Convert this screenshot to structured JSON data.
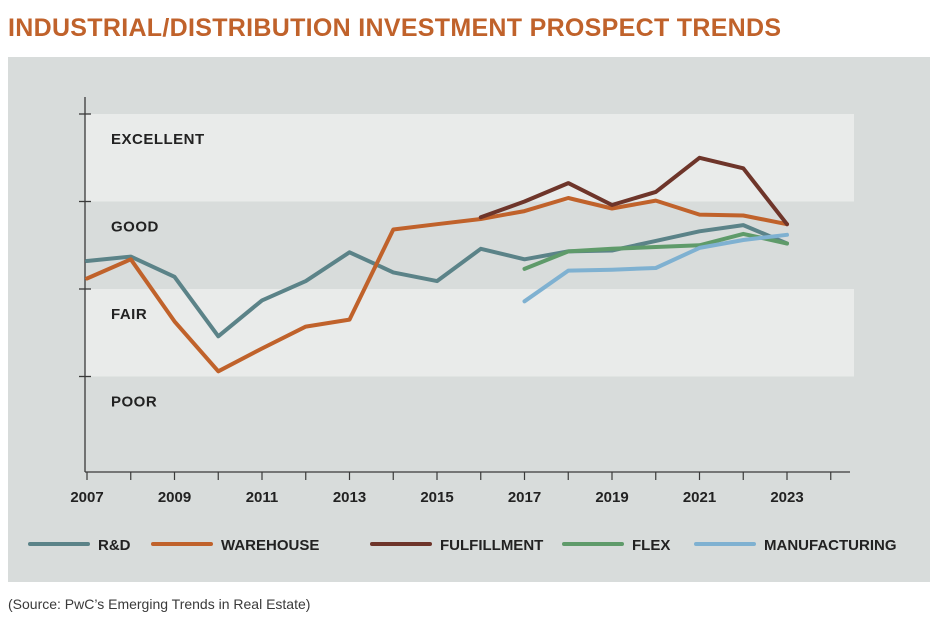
{
  "title": "INDUSTRIAL/DISTRIBUTION INVESTMENT PROSPECT TRENDS",
  "source": "(Source: PwC’s Emerging Trends in Real Estate)",
  "colors": {
    "panel_bg": "#d8dcdb",
    "band_light": "#e9ebea",
    "axis": "#3a3a3a",
    "title": "#c0622b"
  },
  "chart_data": {
    "type": "line",
    "title": "INDUSTRIAL/DISTRIBUTION INVESTMENT PROSPECT TRENDS",
    "xlabel": "",
    "ylabel": "",
    "xlim": [
      2007,
      2024
    ],
    "ylim": [
      1,
      5
    ],
    "grid": false,
    "legend_position": "bottom",
    "x_tick_labels": [
      "2007",
      "2009",
      "2011",
      "2013",
      "2015",
      "2017",
      "2019",
      "2021",
      "2023"
    ],
    "rating_labels": [
      "EXCELLENT",
      "GOOD",
      "FAIR",
      "POOR"
    ],
    "x": [
      2007,
      2008,
      2009,
      2010,
      2011,
      2012,
      2013,
      2014,
      2015,
      2016,
      2017,
      2018,
      2019,
      2020,
      2021,
      2022,
      2023
    ],
    "series": [
      {
        "name": "R&D",
        "color": "#5b8388",
        "values": [
          3.32,
          3.37,
          3.14,
          2.46,
          2.87,
          3.09,
          3.42,
          3.19,
          3.09,
          3.46,
          3.34,
          3.43,
          3.44,
          3.55,
          3.66,
          3.73,
          3.52
        ]
      },
      {
        "name": "WAREHOUSE",
        "color": "#c0622b",
        "values": [
          3.12,
          3.34,
          2.63,
          2.06,
          2.32,
          2.57,
          2.65,
          3.68,
          3.74,
          3.8,
          3.89,
          4.04,
          3.92,
          4.01,
          3.85,
          3.84,
          3.74
        ]
      },
      {
        "name": "FULFILLMENT",
        "color": "#6e352a",
        "values": [
          null,
          null,
          null,
          null,
          null,
          null,
          null,
          null,
          null,
          3.82,
          4.0,
          4.21,
          3.96,
          4.11,
          4.5,
          4.38,
          3.74
        ]
      },
      {
        "name": "FLEX",
        "color": "#5f9b6a",
        "values": [
          null,
          null,
          null,
          null,
          null,
          null,
          null,
          null,
          null,
          null,
          3.23,
          3.43,
          3.46,
          3.48,
          3.5,
          3.63,
          3.52
        ]
      },
      {
        "name": "MANUFACTURING",
        "color": "#7fb1d1",
        "values": [
          null,
          null,
          null,
          null,
          null,
          null,
          null,
          null,
          null,
          null,
          2.86,
          3.21,
          3.22,
          3.24,
          3.47,
          3.56,
          3.62
        ]
      }
    ]
  }
}
